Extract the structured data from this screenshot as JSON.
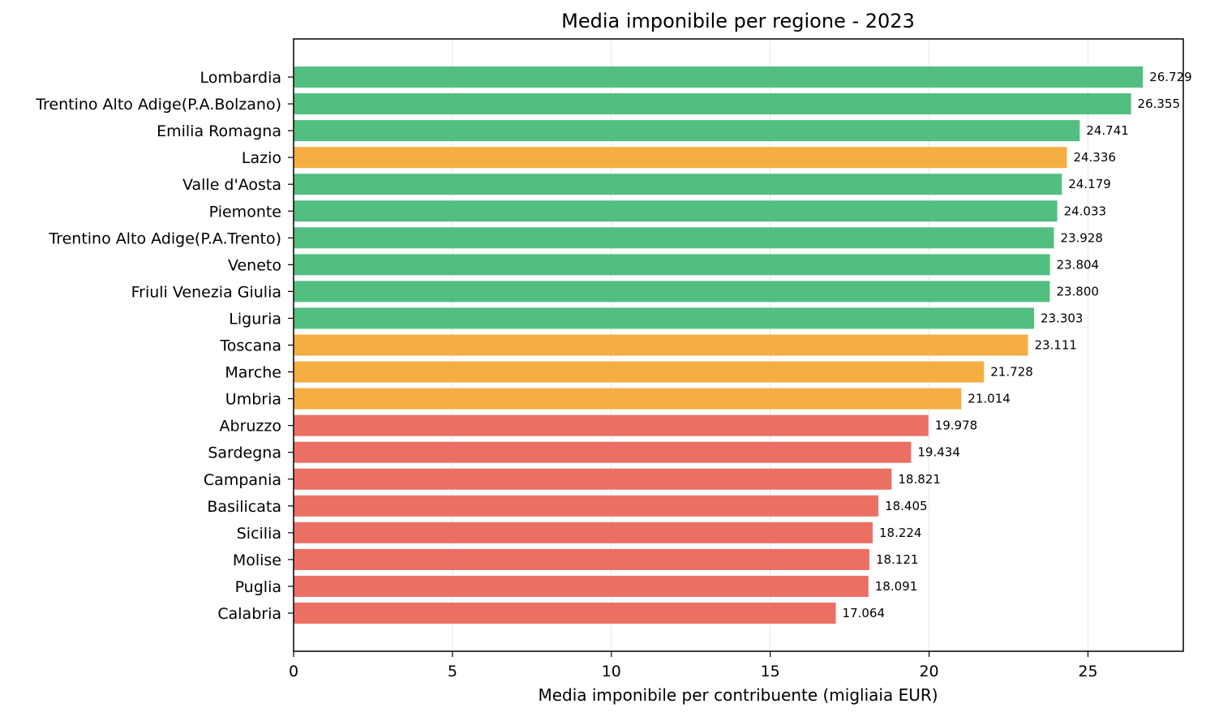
{
  "chart_data": {
    "type": "bar",
    "orientation": "horizontal",
    "title": "Media imponibile per regione - 2023",
    "xlabel": "Media imponibile per contribuente (migliaia EUR)",
    "ylabel": "",
    "xlim": [
      0,
      28
    ],
    "xticks": [
      0,
      5,
      10,
      15,
      20,
      25
    ],
    "grid": "vertical",
    "colors": {
      "green": "#52bf80",
      "orange": "#f5ae42",
      "red": "#ec6f64"
    },
    "categories": [
      "Lombardia",
      "Trentino Alto Adige(P.A.Bolzano)",
      "Emilia Romagna",
      "Lazio",
      "Valle d'Aosta",
      "Piemonte",
      "Trentino Alto Adige(P.A.Trento)",
      "Veneto",
      "Friuli Venezia Giulia",
      "Liguria",
      "Toscana",
      "Marche",
      "Umbria",
      "Abruzzo",
      "Sardegna",
      "Campania",
      "Basilicata",
      "Sicilia",
      "Molise",
      "Puglia",
      "Calabria"
    ],
    "values": [
      26.729,
      26.355,
      24.741,
      24.336,
      24.179,
      24.033,
      23.928,
      23.804,
      23.8,
      23.303,
      23.111,
      21.728,
      21.014,
      19.978,
      19.434,
      18.821,
      18.405,
      18.224,
      18.121,
      18.091,
      17.064
    ],
    "value_labels": [
      "26.729",
      "26.355",
      "24.741",
      "24.336",
      "24.179",
      "24.033",
      "23.928",
      "23.804",
      "23.800",
      "23.303",
      "23.111",
      "21.728",
      "21.014",
      "19.978",
      "19.434",
      "18.821",
      "18.405",
      "18.224",
      "18.121",
      "18.091",
      "17.064"
    ],
    "bar_colors": [
      "green",
      "green",
      "green",
      "orange",
      "green",
      "green",
      "green",
      "green",
      "green",
      "green",
      "orange",
      "orange",
      "orange",
      "red",
      "red",
      "red",
      "red",
      "red",
      "red",
      "red",
      "red"
    ]
  }
}
